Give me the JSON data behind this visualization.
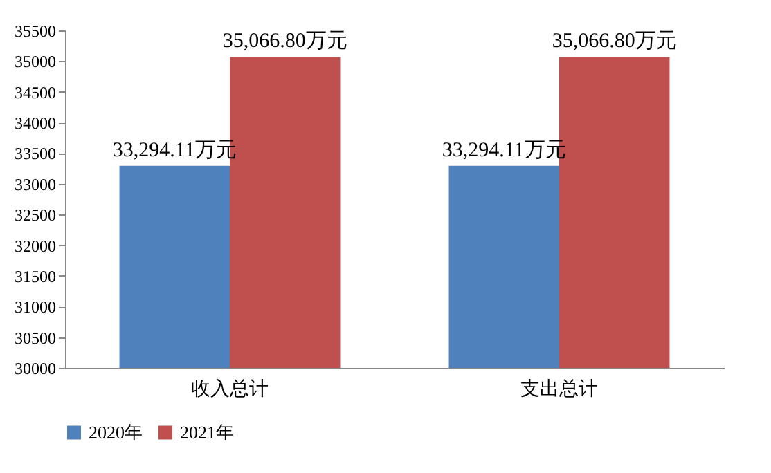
{
  "chart_data": {
    "type": "bar",
    "categories": [
      "收入总计",
      "支出总计"
    ],
    "series": [
      {
        "name": "2020年",
        "color": "#4f81bd",
        "values": [
          33294.11,
          33294.11
        ],
        "value_labels": [
          "33,294.11万元",
          "33,294.11万元"
        ]
      },
      {
        "name": "2021年",
        "color": "#c0504d",
        "values": [
          35066.8,
          35066.8
        ],
        "value_labels": [
          "35,066.80万元",
          "35,066.80万元"
        ]
      }
    ],
    "ylim": [
      30000,
      35500
    ],
    "yticks": [
      30000,
      30500,
      31000,
      31500,
      32000,
      32500,
      33000,
      33500,
      34000,
      34500,
      35000,
      35500
    ],
    "grid": false,
    "legend": "bottom"
  }
}
